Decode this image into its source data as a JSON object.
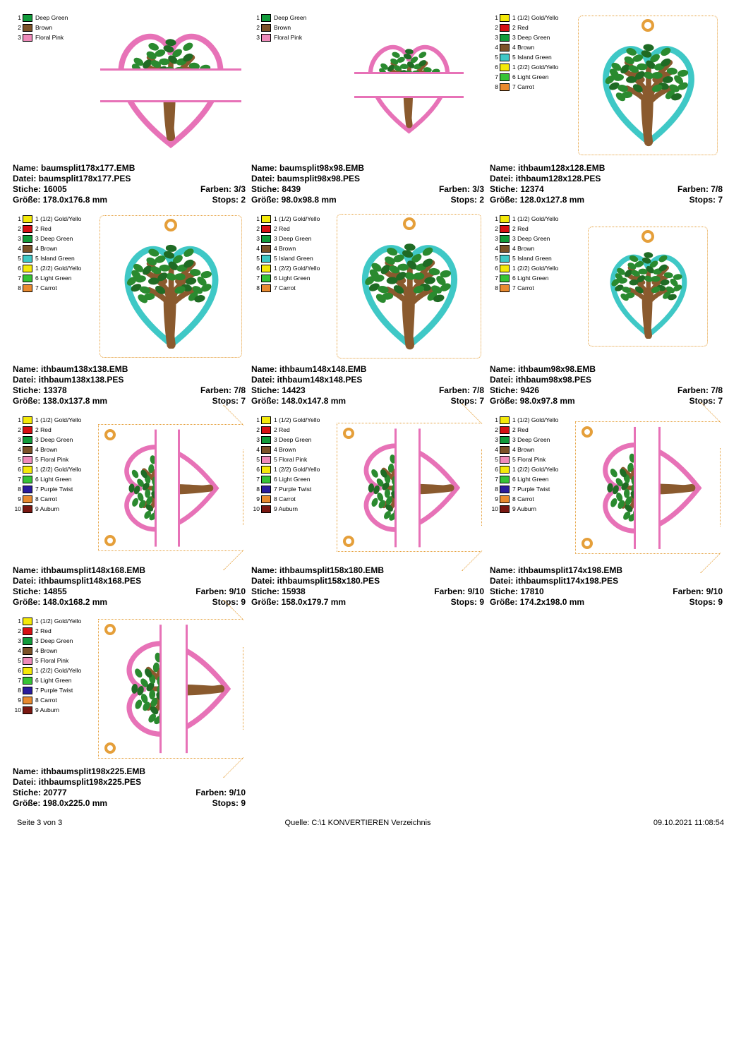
{
  "footer": {
    "left": "Seite 3 von 3",
    "center": "Quelle: C:\\1 KONVERTIEREN Verzeichnis",
    "right": "09.10.2021 11:08:54"
  },
  "labels": {
    "name": "Name:",
    "datei": "Datei:",
    "stiche": "Stiche:",
    "farben": "Farben:",
    "groesse": "Größe:",
    "stops": "Stops:"
  },
  "palettes": {
    "p3": [
      {
        "n": "1",
        "c": "#129b3b",
        "l": "Deep Green"
      },
      {
        "n": "2",
        "c": "#7c5228",
        "l": "Brown"
      },
      {
        "n": "3",
        "c": "#ef8aba",
        "l": "Floral Pink"
      }
    ],
    "p8": [
      {
        "n": "1",
        "c": "#f4e90a",
        "l": "1 (1/2) Gold/Yello"
      },
      {
        "n": "2",
        "c": "#d61014",
        "l": "2 Red"
      },
      {
        "n": "3",
        "c": "#129b3b",
        "l": "3 Deep Green"
      },
      {
        "n": "4",
        "c": "#7c5228",
        "l": "4 Brown"
      },
      {
        "n": "5",
        "c": "#3fc8c6",
        "l": "5 Island Green"
      },
      {
        "n": "6",
        "c": "#f4e90a",
        "l": "1 (2/2) Gold/Yello"
      },
      {
        "n": "7",
        "c": "#36c336",
        "l": "6 Light Green"
      },
      {
        "n": "8",
        "c": "#e88a2f",
        "l": "7 Carrot"
      }
    ],
    "p10": [
      {
        "n": "1",
        "c": "#f4e90a",
        "l": "1 (1/2) Gold/Yello"
      },
      {
        "n": "2",
        "c": "#d61014",
        "l": "2 Red"
      },
      {
        "n": "3",
        "c": "#129b3b",
        "l": "3 Deep Green"
      },
      {
        "n": "4",
        "c": "#7c5228",
        "l": "4 Brown"
      },
      {
        "n": "5",
        "c": "#ef8aba",
        "l": "5 Floral Pink"
      },
      {
        "n": "6",
        "c": "#f4e90a",
        "l": "1 (2/2) Gold/Yello"
      },
      {
        "n": "7",
        "c": "#36c336",
        "l": "6 Light Green"
      },
      {
        "n": "8",
        "c": "#2a1c9c",
        "l": "7 Purple Twist"
      },
      {
        "n": "9",
        "c": "#e88a2f",
        "l": "8 Carrot"
      },
      {
        "n": "10",
        "c": "#7a1812",
        "l": "9 Auburn"
      }
    ]
  },
  "cards": [
    {
      "kind": "split",
      "palette": "p3",
      "name": "baumsplit178x177.EMB",
      "datei": "baumsplit178x177.PES",
      "stiche": "16005",
      "farben": "3/3",
      "groesse": "178.0x176.8 mm",
      "stops": "2",
      "tw": 200,
      "th": 200
    },
    {
      "kind": "split",
      "palette": "p3",
      "name": "baumsplit98x98.EMB",
      "datei": "baumsplit98x98.PES",
      "stiche": "8439",
      "farben": "3/3",
      "groesse": "98.0x98.8 mm",
      "stops": "2",
      "tw": 155,
      "th": 155
    },
    {
      "kind": "ith",
      "palette": "p8",
      "name": "ithbaum128x128.EMB",
      "datei": "ithbaum128x128.PES",
      "stiche": "12374",
      "farben": "7/8",
      "groesse": "128.0x127.8 mm",
      "stops": "7",
      "tw": 198,
      "th": 198
    },
    {
      "kind": "ith",
      "palette": "p8",
      "name": "ithbaum138x138.EMB",
      "datei": "ithbaum138x138.PES",
      "stiche": "13378",
      "farben": "7/8",
      "groesse": "138.0x137.8 mm",
      "stops": "7",
      "tw": 202,
      "th": 202
    },
    {
      "kind": "ith",
      "palette": "p8",
      "name": "ithbaum148x148.EMB",
      "datei": "ithbaum148x148.PES",
      "stiche": "14423",
      "farben": "7/8",
      "groesse": "148.0x147.8 mm",
      "stops": "7",
      "tw": 205,
      "th": 205
    },
    {
      "kind": "ith",
      "palette": "p8",
      "name": "ithbaum98x98.EMB",
      "datei": "ithbaum98x98.PES",
      "stiche": "9426",
      "farben": "7/8",
      "groesse": "98.0x97.8 mm",
      "stops": "7",
      "tw": 170,
      "th": 170
    },
    {
      "kind": "tag",
      "palette": "p10",
      "name": "ithbaumsplit148x168.EMB",
      "datei": "ithbaumsplit148x168.PES",
      "stiche": "14855",
      "farben": "9/10",
      "groesse": "148.0x168.2 mm",
      "stops": "9",
      "tw": 205,
      "th": 180
    },
    {
      "kind": "tag",
      "palette": "p10",
      "name": "ithbaumsplit158x180.EMB",
      "datei": "ithbaumsplit158x180.PES",
      "stiche": "15938",
      "farben": "9/10",
      "groesse": "158.0x179.7 mm",
      "stops": "9",
      "tw": 210,
      "th": 183
    },
    {
      "kind": "tag",
      "palette": "p10",
      "name": "ithbaumsplit174x198.EMB",
      "datei": "ithbaumsplit174x198.PES",
      "stiche": "17810",
      "farben": "9/10",
      "groesse": "174.2x198.0 mm",
      "stops": "9",
      "tw": 215,
      "th": 188
    },
    {
      "kind": "tag",
      "palette": "p10",
      "name": "ithbaumsplit198x225.EMB",
      "datei": "ithbaumsplit198x225.PES",
      "stiche": "20777",
      "farben": "9/10",
      "groesse": "198.0x225.0 mm",
      "stops": "9",
      "tw": 225,
      "th": 198
    }
  ],
  "colors": {
    "pink": "#e772b7",
    "teal": "#3fc8c6",
    "trunk": "#8a5a2e",
    "leaf": "#2a8a2f",
    "leaf2": "#1f6b24",
    "carrot": "#e59f3a"
  }
}
